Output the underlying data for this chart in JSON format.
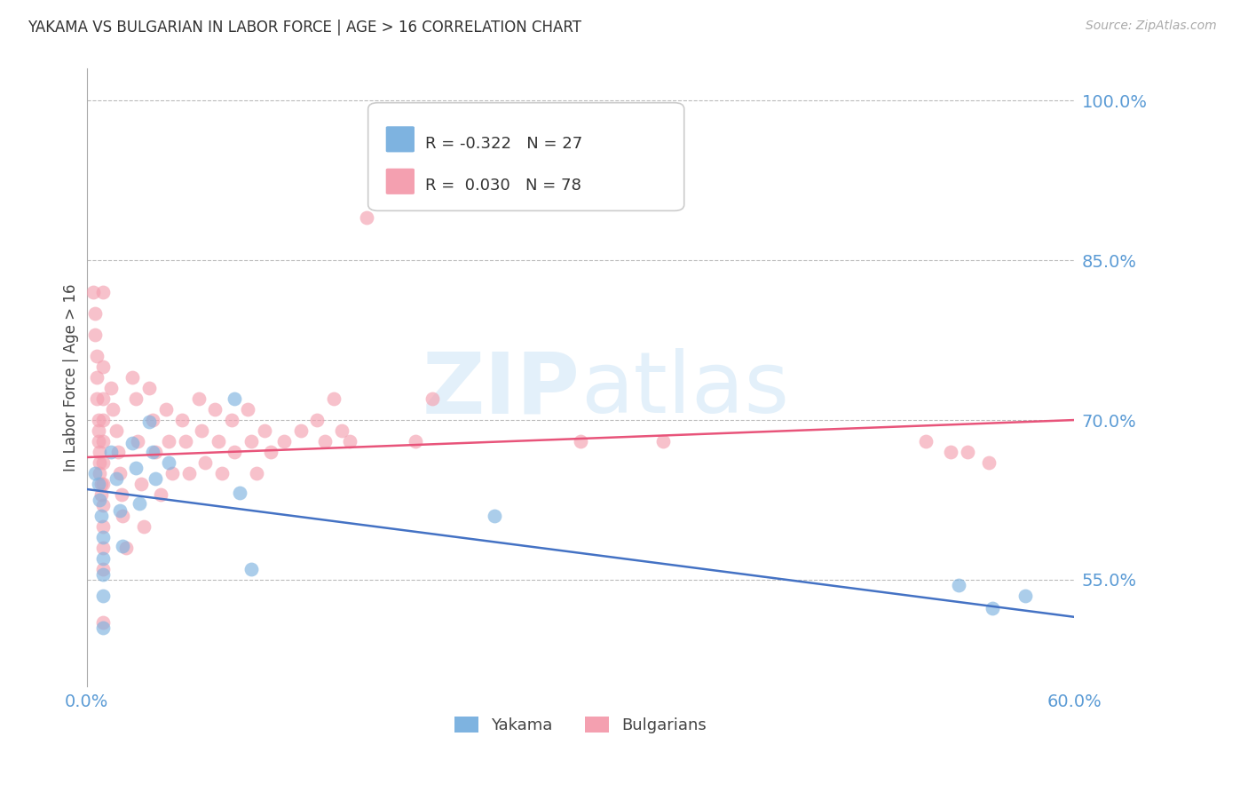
{
  "title": "YAKAMA VS BULGARIAN IN LABOR FORCE | AGE > 16 CORRELATION CHART",
  "source": "Source: ZipAtlas.com",
  "ylabel": "In Labor Force | Age > 16",
  "xmin": 0.0,
  "xmax": 0.6,
  "ymin": 0.45,
  "ymax": 1.03,
  "yticks": [
    0.55,
    0.7,
    0.85,
    1.0
  ],
  "ytick_labels": [
    "55.0%",
    "70.0%",
    "85.0%",
    "100.0%"
  ],
  "yakama_R": -0.322,
  "yakama_N": 27,
  "bulgarian_R": 0.03,
  "bulgarian_N": 78,
  "yakama_color": "#7EB3E0",
  "bulgarian_color": "#F4A0B0",
  "yakama_line_color": "#4472C4",
  "bulgarian_line_color": "#E8547A",
  "background_color": "#FFFFFF",
  "grid_color": "#BBBBBB",
  "tick_label_color": "#5B9BD5",
  "yakama_line_y0": 0.635,
  "yakama_line_y1": 0.515,
  "bulg_line_y0": 0.665,
  "bulg_line_y1": 0.7,
  "yakama_x": [
    0.005,
    0.007,
    0.008,
    0.009,
    0.01,
    0.01,
    0.01,
    0.01,
    0.01,
    0.015,
    0.018,
    0.02,
    0.022,
    0.028,
    0.03,
    0.032,
    0.038,
    0.04,
    0.042,
    0.05,
    0.09,
    0.093,
    0.1,
    0.248,
    0.53,
    0.55,
    0.57
  ],
  "yakama_y": [
    0.65,
    0.64,
    0.625,
    0.61,
    0.59,
    0.57,
    0.555,
    0.535,
    0.505,
    0.67,
    0.645,
    0.615,
    0.582,
    0.678,
    0.655,
    0.622,
    0.698,
    0.67,
    0.645,
    0.66,
    0.72,
    0.632,
    0.56,
    0.61,
    0.545,
    0.523,
    0.535
  ],
  "bulgarian_x": [
    0.004,
    0.005,
    0.005,
    0.006,
    0.006,
    0.006,
    0.007,
    0.007,
    0.007,
    0.008,
    0.008,
    0.008,
    0.009,
    0.009,
    0.01,
    0.01,
    0.01,
    0.01,
    0.01,
    0.01,
    0.01,
    0.01,
    0.01,
    0.01,
    0.01,
    0.01,
    0.015,
    0.016,
    0.018,
    0.019,
    0.02,
    0.021,
    0.022,
    0.024,
    0.028,
    0.03,
    0.031,
    0.033,
    0.035,
    0.038,
    0.04,
    0.042,
    0.045,
    0.048,
    0.05,
    0.052,
    0.058,
    0.06,
    0.062,
    0.068,
    0.07,
    0.072,
    0.078,
    0.08,
    0.082,
    0.088,
    0.09,
    0.098,
    0.1,
    0.103,
    0.108,
    0.112,
    0.12,
    0.13,
    0.14,
    0.145,
    0.15,
    0.155,
    0.16,
    0.17,
    0.2,
    0.21,
    0.3,
    0.35,
    0.51,
    0.525,
    0.535,
    0.548
  ],
  "bulgarian_y": [
    0.82,
    0.8,
    0.78,
    0.76,
    0.74,
    0.72,
    0.7,
    0.69,
    0.68,
    0.67,
    0.66,
    0.65,
    0.64,
    0.63,
    0.82,
    0.75,
    0.72,
    0.7,
    0.68,
    0.66,
    0.64,
    0.62,
    0.6,
    0.58,
    0.56,
    0.51,
    0.73,
    0.71,
    0.69,
    0.67,
    0.65,
    0.63,
    0.61,
    0.58,
    0.74,
    0.72,
    0.68,
    0.64,
    0.6,
    0.73,
    0.7,
    0.67,
    0.63,
    0.71,
    0.68,
    0.65,
    0.7,
    0.68,
    0.65,
    0.72,
    0.69,
    0.66,
    0.71,
    0.68,
    0.65,
    0.7,
    0.67,
    0.71,
    0.68,
    0.65,
    0.69,
    0.67,
    0.68,
    0.69,
    0.7,
    0.68,
    0.72,
    0.69,
    0.68,
    0.89,
    0.68,
    0.72,
    0.68,
    0.68,
    0.68,
    0.67,
    0.67,
    0.66
  ]
}
